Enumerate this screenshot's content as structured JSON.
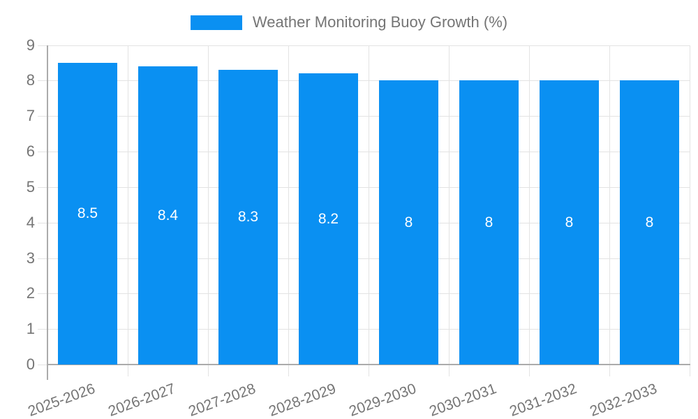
{
  "legend": {
    "label": "Weather Monitoring Buoy Growth (%)"
  },
  "chart_data": {
    "type": "bar",
    "title": "",
    "legend_entries": [
      "Weather Monitoring Buoy Growth (%)"
    ],
    "legend_position": "top",
    "categories": [
      "2025-2026",
      "2026-2027",
      "2027-2028",
      "2028-2029",
      "2029-2030",
      "2030-2031",
      "2031-2032",
      "2032-2033"
    ],
    "values": [
      8.5,
      8.4,
      8.3,
      8.2,
      8,
      8,
      8,
      8
    ],
    "value_labels": [
      "8.5",
      "8.4",
      "8.3",
      "8.2",
      "8",
      "8",
      "8",
      "8"
    ],
    "xlabel": "",
    "ylabel": "",
    "ylim": [
      0,
      9
    ],
    "ytick_step": 1,
    "yticks": [
      "0",
      "1",
      "2",
      "3",
      "4",
      "5",
      "6",
      "7",
      "8",
      "9"
    ],
    "grid": true,
    "x_label_rotation_deg": -20,
    "colors": {
      "bar": "#0a90f2",
      "text": "#757575",
      "grid": "#e3e3e3",
      "axis": "#ababab",
      "value_label": "#ffffff",
      "background": "#ffffff"
    }
  }
}
